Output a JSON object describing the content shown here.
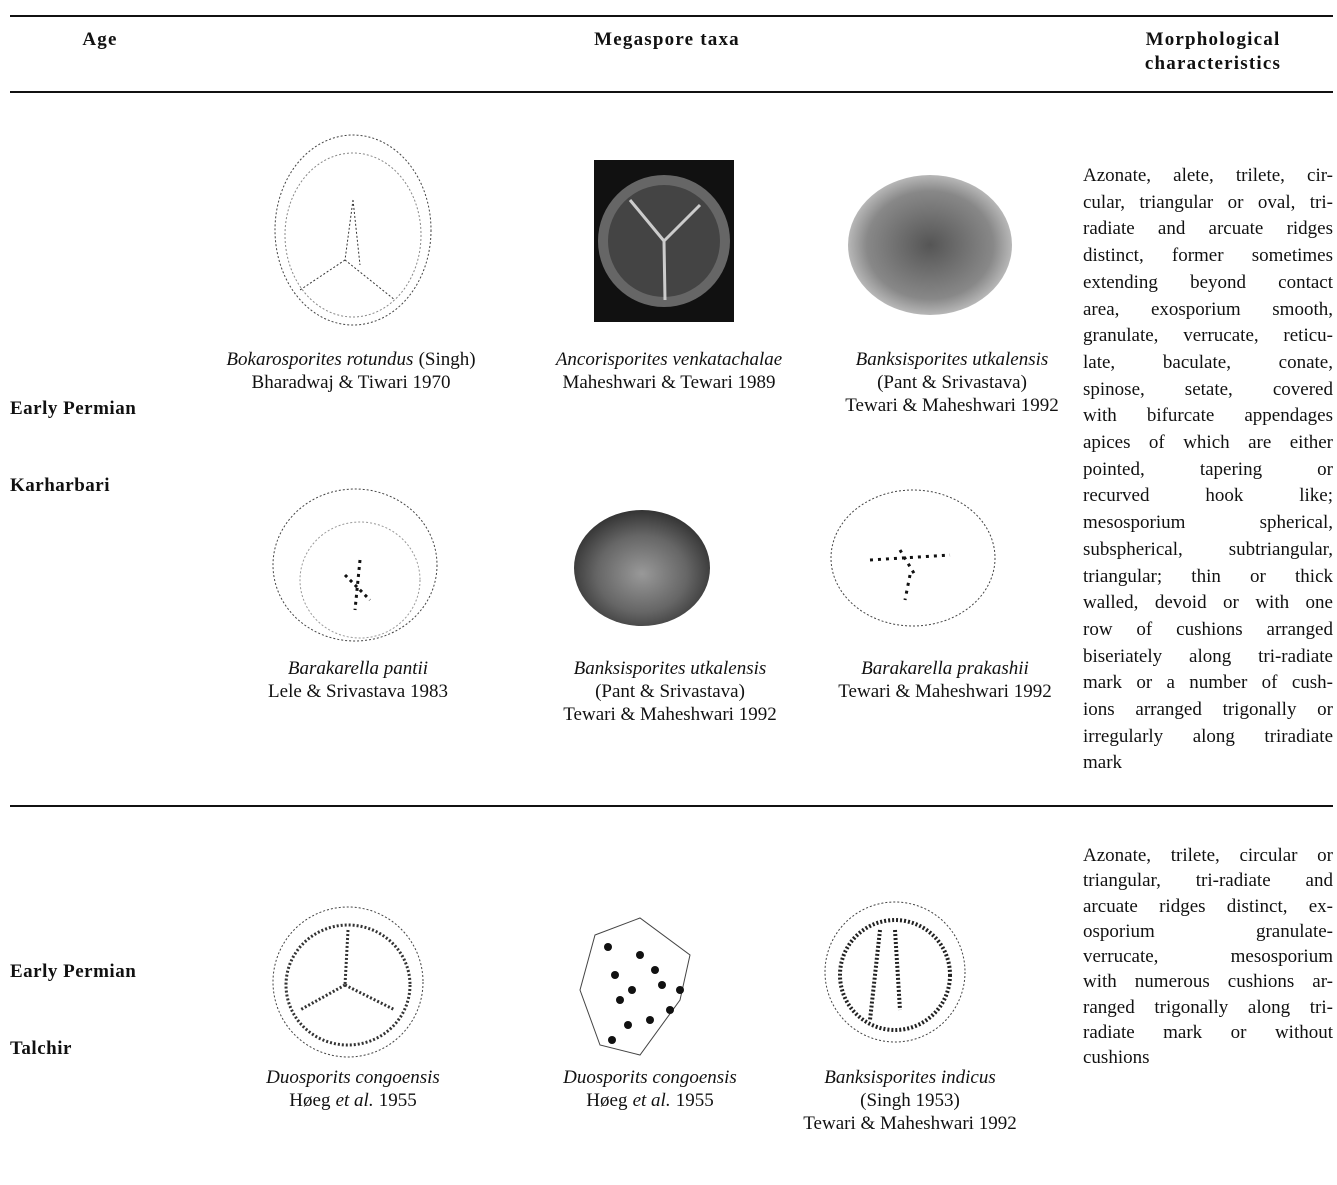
{
  "header": {
    "age": "Age",
    "taxa": "Megaspore taxa",
    "morphology": [
      "Morphological",
      "characteristics"
    ]
  },
  "sections": [
    {
      "age": [
        "Early Permian",
        "Karharbari"
      ],
      "taxa": [
        {
          "lines": [
            [
              {
                "italic": "Bokarosporites rotundus"
              },
              {
                "text": "(Singh)"
              }
            ],
            [
              {
                "text": "Bharadwaj  & Tiwari 1970"
              }
            ]
          ]
        },
        {
          "lines": [
            [
              {
                "italic": "Ancorisporites venkatachalae"
              }
            ],
            [
              {
                "text": "Maheshwari & Tewari 1989"
              }
            ]
          ]
        },
        {
          "lines": [
            [
              {
                "italic": "Banksisporites utkalensis"
              }
            ],
            [
              {
                "text": "(Pant & Srivastava)"
              }
            ],
            [
              {
                "text": "Tewari & Maheshwari 1992"
              }
            ]
          ]
        },
        {
          "lines": [
            [
              {
                "italic": "Barakarella pantii"
              }
            ],
            [
              {
                "text": "Lele & Srivastava 1983"
              }
            ]
          ]
        },
        {
          "lines": [
            [
              {
                "italic": "Banksisporites utkalensis"
              }
            ],
            [
              {
                "text": "(Pant & Srivastava)"
              }
            ],
            [
              {
                "text": "Tewari & Maheshwari 1992"
              }
            ]
          ]
        },
        {
          "lines": [
            [
              {
                "italic": "Barakarella prakashii"
              }
            ],
            [
              {
                "text": "Tewari & Maheshwari 1992"
              }
            ]
          ]
        }
      ],
      "description": [
        "Azonate, alete,  trilete, cir-",
        "cular, triangular or oval, tri-",
        "radiate and arcuate ridges",
        "distinct, former sometimes",
        "extending beyond contact",
        "area, exosporium smooth,",
        "granulate, verrucate, reticu-",
        "late, baculate, conate,",
        "spinose, setate, covered",
        "with bifurcate appendages",
        "apices of which are either",
        "pointed, tapering or",
        "recurved hook like;",
        "mesosporium spherical,",
        "subspherical, subtriangular,",
        "triangular; thin or thick",
        "walled, devoid or with one",
        "row of cushions arranged",
        "biseriately along tri-radiate",
        "mark or a number of cush-",
        "ions arranged trigonally or",
        "irregularly along triradiate",
        "mark"
      ]
    },
    {
      "age": [
        "Early Permian",
        "Talchir"
      ],
      "taxa": [
        {
          "lines": [
            [
              {
                "italic": "Duosporits congoensis"
              }
            ],
            [
              {
                "text": "Høeg"
              },
              {
                "italic": "et al."
              },
              {
                "text": "1955"
              }
            ]
          ]
        },
        {
          "lines": [
            [
              {
                "italic": "Duosporits congoensis"
              }
            ],
            [
              {
                "text": "Høeg"
              },
              {
                "italic": "et al."
              },
              {
                "text": "1955"
              }
            ]
          ]
        },
        {
          "lines": [
            [
              {
                "italic": "Banksisporites indicus"
              }
            ],
            [
              {
                "text": "(Singh 1953)"
              }
            ],
            [
              {
                "text": "Tewari & Maheshwari 1992"
              }
            ]
          ]
        }
      ],
      "description": [
        "Azonate, trilete, circular or",
        "triangular, tri-radiate and",
        "arcuate ridges distinct, ex-",
        "osporium granulate-",
        "verrucate, mesosporium",
        "with numerous cushions ar-",
        "ranged trigonally along tri-",
        "radiate mark or without",
        "cushions"
      ]
    }
  ]
}
